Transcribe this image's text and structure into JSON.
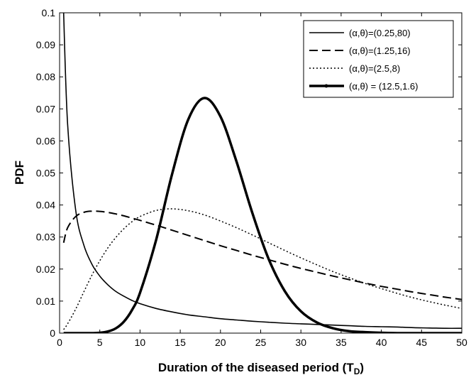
{
  "chart_data": {
    "type": "line",
    "title": "",
    "xlabel": "Duration of the diseased period (T",
    "xlabel_sub": "D",
    "xlabel_close": ")",
    "ylabel": "PDF",
    "xlim": [
      0,
      50
    ],
    "ylim": [
      0,
      0.1
    ],
    "xticks": [
      0,
      5,
      10,
      15,
      20,
      25,
      30,
      35,
      40,
      45,
      50
    ],
    "yticks": [
      0,
      0.01,
      0.02,
      0.03,
      0.04,
      0.05,
      0.06,
      0.07,
      0.08,
      0.09,
      0.1
    ],
    "grid": false,
    "legend_position": "top-right",
    "x": [
      0.5,
      1,
      2,
      3,
      4,
      5,
      6,
      7,
      8,
      9,
      10,
      12,
      14,
      16,
      18,
      20,
      22,
      24,
      26,
      28,
      30,
      32,
      34,
      36,
      38,
      40,
      42,
      44,
      46,
      48,
      50
    ],
    "series": [
      {
        "name": "(α,θ)=(0.25,80)",
        "style": "solid",
        "values": [
          0.1,
          0.0653,
          0.0384,
          0.0276,
          0.0216,
          0.0178,
          0.0151,
          0.013,
          0.0115,
          0.0102,
          0.0092,
          0.0077,
          0.0066,
          0.0057,
          0.0051,
          0.0045,
          0.0041,
          0.0037,
          0.0034,
          0.0031,
          0.0029,
          0.0027,
          0.0025,
          0.0023,
          0.0021,
          0.002,
          0.0019,
          0.0017,
          0.0016,
          0.0015,
          0.0015
        ]
      },
      {
        "name": "(α,θ)=(1.25,16)",
        "style": "dashed",
        "values": [
          0.0282,
          0.0329,
          0.0364,
          0.0377,
          0.0381,
          0.038,
          0.0377,
          0.0372,
          0.0366,
          0.0359,
          0.0352,
          0.0337,
          0.0321,
          0.0305,
          0.0289,
          0.0273,
          0.0258,
          0.0243,
          0.0229,
          0.0215,
          0.0202,
          0.019,
          0.0178,
          0.0167,
          0.0156,
          0.0146,
          0.0137,
          0.0128,
          0.012,
          0.0112,
          0.0105
        ]
      },
      {
        "name": "(α,θ)=(2.5,8)",
        "style": "dotted",
        "values": [
          0.0011,
          0.0029,
          0.0075,
          0.0128,
          0.018,
          0.0226,
          0.0266,
          0.0299,
          0.0326,
          0.0348,
          0.0364,
          0.0383,
          0.0388,
          0.0382,
          0.0369,
          0.035,
          0.0329,
          0.0306,
          0.0282,
          0.0258,
          0.0235,
          0.0213,
          0.0192,
          0.0173,
          0.0155,
          0.0139,
          0.0124,
          0.011,
          0.0098,
          0.0087,
          0.0077
        ]
      },
      {
        "name": "(α,θ) = (12.5,1.6)",
        "style": "solid-thick-marker",
        "values": [
          0.0,
          0.0,
          0.0,
          0.0,
          0.0,
          0.0001,
          0.0005,
          0.0015,
          0.0036,
          0.0072,
          0.0126,
          0.0291,
          0.0498,
          0.0667,
          0.0734,
          0.0676,
          0.0535,
          0.0372,
          0.0231,
          0.0131,
          0.0068,
          0.0033,
          0.0015,
          0.0006,
          0.0003,
          0.0001,
          0.0,
          0.0,
          0.0,
          0.0,
          0.0
        ]
      }
    ]
  }
}
